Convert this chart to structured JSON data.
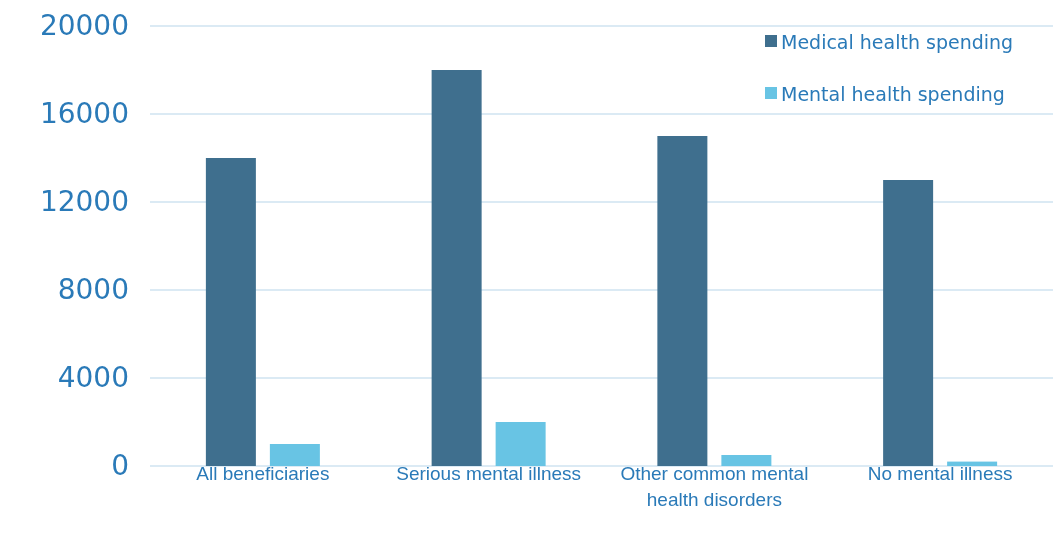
{
  "chart_data": {
    "type": "bar",
    "categories": [
      "All beneficiaries",
      "Serious mental illness",
      "Other common mental health disorders",
      "No mental illness"
    ],
    "series": [
      {
        "name": "Medical health spending",
        "color": "#3f6f8e",
        "values": [
          14000,
          18000,
          15000,
          13000
        ]
      },
      {
        "name": "Mental health spending",
        "color": "#68c4e4",
        "values": [
          1000,
          2000,
          500,
          200
        ]
      }
    ],
    "ylim": [
      0,
      20000
    ],
    "yticks": [
      0,
      4000,
      8000,
      12000,
      16000,
      20000
    ],
    "grid": "y",
    "legend": "top right"
  }
}
